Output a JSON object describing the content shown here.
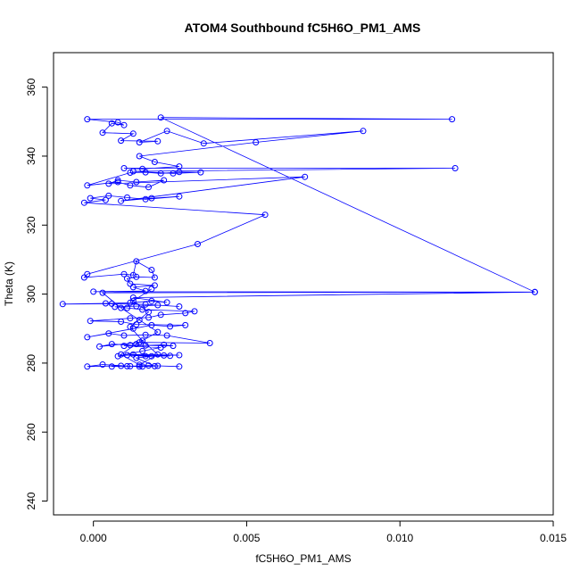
{
  "chart_data": {
    "type": "scatter",
    "title": "ATOM4 Southbound fC5H6O_PM1_AMS",
    "xlabel": "fC5H6O_PM1_AMS",
    "ylabel": "Theta (K)",
    "xlim": [
      -0.0013,
      0.015
    ],
    "ylim": [
      236,
      370
    ],
    "xticks": [
      0.0,
      0.005,
      0.01,
      0.015
    ],
    "xtick_labels": [
      "0.000",
      "0.005",
      "0.010",
      "0.015"
    ],
    "yticks": [
      240,
      260,
      280,
      300,
      320,
      340,
      360
    ],
    "ytick_labels": [
      "240",
      "260",
      "280",
      "300",
      "320",
      "340",
      "360"
    ],
    "grid": false,
    "legend": "none",
    "series": [
      {
        "color": "#0000ff",
        "style": "line+open-circles",
        "points": [
          [
            0.0006,
            279.0
          ],
          [
            0.0011,
            279.1
          ],
          [
            0.0016,
            279.0
          ],
          [
            0.0021,
            279.2
          ],
          [
            0.0028,
            279.0
          ],
          [
            0.0018,
            279.3
          ],
          [
            0.0012,
            279.1
          ],
          [
            0.0003,
            279.6
          ],
          [
            -0.0002,
            279.0
          ],
          [
            0.0009,
            279.2
          ],
          [
            0.0015,
            279.0
          ],
          [
            0.002,
            279.1
          ],
          [
            0.0014,
            281.5
          ],
          [
            0.0019,
            282.0
          ],
          [
            0.0025,
            282.1
          ],
          [
            0.0011,
            282.3
          ],
          [
            0.0017,
            282.0
          ],
          [
            0.0023,
            282.2
          ],
          [
            0.0028,
            282.3
          ],
          [
            0.0013,
            282.5
          ],
          [
            0.0008,
            282.0
          ],
          [
            0.0016,
            283.5
          ],
          [
            0.0022,
            284.5
          ],
          [
            0.001,
            285.0
          ],
          [
            0.0017,
            285.1
          ],
          [
            0.0023,
            285.3
          ],
          [
            0.0026,
            285.0
          ],
          [
            0.0012,
            285.2
          ],
          [
            0.0006,
            285.5
          ],
          [
            0.0002,
            284.8
          ],
          [
            0.0015,
            286.0
          ],
          [
            0.0038,
            285.8
          ],
          [
            0.0024,
            288.0
          ],
          [
            0.0017,
            288.2
          ],
          [
            0.001,
            288.0
          ],
          [
            0.0005,
            288.6
          ],
          [
            -0.0002,
            287.5
          ],
          [
            0.0013,
            290.0
          ],
          [
            0.0019,
            291.0
          ],
          [
            0.0025,
            290.6
          ],
          [
            0.003,
            291.0
          ],
          [
            0.0014,
            291.2
          ],
          [
            0.0009,
            292.0
          ],
          [
            -0.0001,
            292.2
          ],
          [
            0.0012,
            293.0
          ],
          [
            0.0018,
            293.2
          ],
          [
            0.0022,
            294.0
          ],
          [
            0.003,
            294.5
          ],
          [
            0.0033,
            295.0
          ],
          [
            0.0016,
            295.5
          ],
          [
            0.0011,
            296.0
          ],
          [
            0.0007,
            296.3
          ],
          [
            0.0014,
            296.5
          ],
          [
            0.0021,
            296.8
          ],
          [
            0.0028,
            296.4
          ],
          [
            0.0017,
            297.0
          ],
          [
            0.0006,
            297.2
          ],
          [
            -0.001,
            297.1
          ],
          [
            0.0004,
            297.3
          ],
          [
            0.0012,
            297.5
          ],
          [
            0.0019,
            298.0
          ],
          [
            0.0024,
            297.6
          ],
          [
            0.0013,
            299.0
          ],
          [
            0.0144,
            300.6
          ],
          [
            0.0,
            300.7
          ],
          [
            0.0017,
            300.9
          ],
          [
            0.0013,
            302.0
          ],
          [
            0.002,
            302.5
          ],
          [
            0.0012,
            303.0
          ],
          [
            0.0011,
            304.5
          ],
          [
            0.0014,
            305.0
          ],
          [
            0.002,
            304.8
          ],
          [
            0.0019,
            307.0
          ],
          [
            0.0014,
            309.5
          ],
          [
            0.0013,
            305.5
          ],
          [
            0.001,
            305.8
          ],
          [
            -0.0003,
            304.8
          ],
          [
            -0.0002,
            305.8
          ],
          [
            0.0034,
            314.5
          ],
          [
            0.0056,
            323.0
          ],
          [
            -0.0003,
            326.5
          ],
          [
            0.0004,
            327.3
          ],
          [
            -0.0001,
            327.8
          ],
          [
            0.0005,
            328.5
          ],
          [
            0.0011,
            328.0
          ],
          [
            0.0017,
            327.5
          ],
          [
            0.0028,
            328.3
          ],
          [
            0.0019,
            327.8
          ],
          [
            0.0009,
            327.0
          ],
          [
            0.0069,
            334.0
          ],
          [
            0.0005,
            332.0
          ],
          [
            0.0008,
            333.0
          ],
          [
            0.0014,
            332.5
          ],
          [
            0.0023,
            333.0
          ],
          [
            0.0018,
            331.0
          ],
          [
            0.0012,
            331.5
          ],
          [
            0.0008,
            332.5
          ],
          [
            -0.0002,
            331.5
          ],
          [
            0.0012,
            335.2
          ],
          [
            0.0017,
            335.3
          ],
          [
            0.0022,
            335.0
          ],
          [
            0.0028,
            335.4
          ],
          [
            0.0035,
            335.3
          ],
          [
            0.0026,
            335.0
          ],
          [
            0.0013,
            335.6
          ],
          [
            0.0118,
            336.5
          ],
          [
            0.001,
            336.5
          ],
          [
            0.0016,
            336.3
          ],
          [
            0.0028,
            337.0
          ],
          [
            0.002,
            338.3
          ],
          [
            0.0015,
            340.0
          ],
          [
            0.0053,
            344.0
          ],
          [
            0.0088,
            347.3
          ],
          [
            0.0036,
            343.7
          ],
          [
            0.0024,
            347.3
          ],
          [
            0.0015,
            344.0
          ],
          [
            0.0021,
            344.3
          ],
          [
            0.0009,
            344.5
          ],
          [
            0.0013,
            346.5
          ],
          [
            0.0003,
            346.8
          ],
          [
            0.0006,
            349.5
          ],
          [
            0.001,
            349.0
          ],
          [
            0.0008,
            349.8
          ],
          [
            -0.0002,
            350.7
          ],
          [
            0.0117,
            350.7
          ],
          [
            0.0022,
            351.2
          ],
          [
            0.0144,
            300.6
          ],
          [
            0.0003,
            300.4
          ],
          [
            0.0009,
            296.0
          ],
          [
            0.0015,
            292.5
          ],
          [
            0.0021,
            289.0
          ],
          [
            0.0014,
            285.5
          ],
          [
            0.0009,
            282.5
          ],
          [
            0.0015,
            279.5
          ],
          [
            0.0021,
            282.5
          ],
          [
            0.0016,
            286.5
          ],
          [
            0.0012,
            290.5
          ],
          [
            0.0018,
            294.8
          ],
          [
            0.0013,
            298.0
          ],
          [
            0.0019,
            301.5
          ]
        ]
      }
    ]
  }
}
